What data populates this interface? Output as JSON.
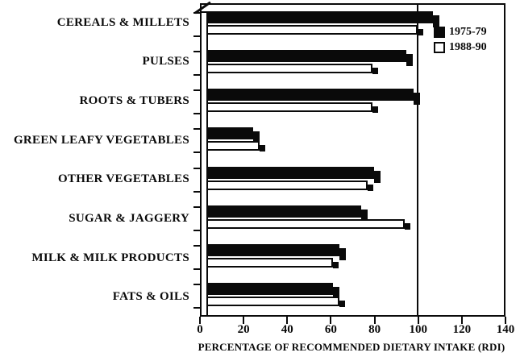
{
  "chart_data": {
    "type": "bar",
    "orientation": "horizontal",
    "title": "",
    "xlabel": "PERCENTAGE OF RECOMMENDED DIETARY INTAKE (RDI)",
    "ylabel": "",
    "xlim": [
      0,
      140
    ],
    "xticks": [
      0,
      20,
      40,
      60,
      80,
      100,
      120,
      140
    ],
    "gridline_x": 100,
    "grid": "single vertical line at 100",
    "legend_position": "top-right",
    "categories": [
      "CEREALS & MILLETS",
      "PULSES",
      "ROOTS & TUBERS",
      "GREEN LEAFY VEGETABLES",
      "OTHER VEGETABLES",
      "SUGAR & JAGGERY",
      "MILK & MILK PRODUCTS",
      "FATS & OILS"
    ],
    "series": [
      {
        "name": "1975-79",
        "swatch": "black",
        "values": [
          107,
          95,
          98,
          24,
          80,
          74,
          64,
          61
        ]
      },
      {
        "name": "1988-90",
        "swatch": "white",
        "values": [
          100,
          79,
          79,
          27,
          77,
          94,
          61,
          64
        ]
      }
    ]
  },
  "legend": {
    "items": [
      {
        "label": "1975-79",
        "swatch": "black"
      },
      {
        "label": "1988-90",
        "swatch": "white"
      }
    ]
  },
  "colors": {
    "foreground": "#0a0a0a",
    "background": "#ffffff",
    "bar_1975_79": "#0a0a0a",
    "bar_1988_90": "#ffffff"
  }
}
